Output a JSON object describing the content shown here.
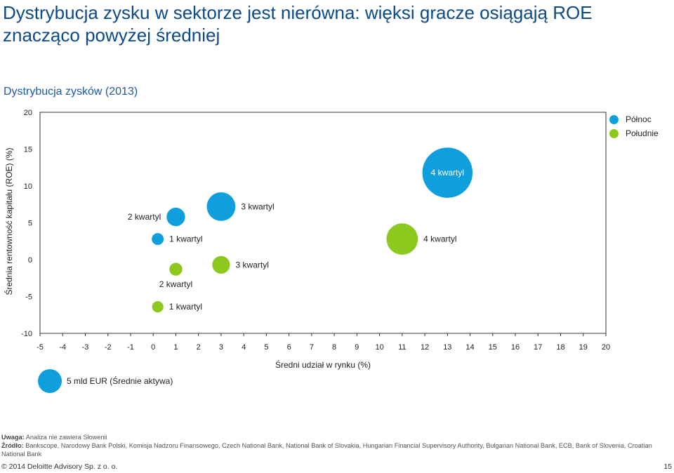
{
  "page": {
    "title": "Dystrybucja zysku w sektorze jest nierówna: więksi gracze osiągają ROE znacząco powyżej średniej",
    "subtitle": "Dystrybucja zysków (2013)",
    "note_label": "Uwaga:",
    "note_text": " Analiza nie zawiera Słowenii",
    "source_label": "Źródło:",
    "source_text": " Bankscope, Narodowy Bank Polski, Komisja Nadzoru Finansowego, Czech National Bank, National Bank of Slovakia, Hungarian Financial Supervisory Authority, Bulgarian National Bank, ECB, Bank of Slovenia, Croatian National Bank",
    "footer": "© 2014 Deloitte Advisory Sp. z o. o.",
    "page_number": "15"
  },
  "chart_data": {
    "type": "scatter",
    "xlabel": "Średni udział w rynku (%)",
    "ylabel": "Średnia rentowność kapitału  (ROE) (%)",
    "xlim": [
      -5,
      20
    ],
    "ylim": [
      -10,
      20
    ],
    "xticks": [
      -5,
      -4,
      -3,
      -2,
      -1,
      0,
      1,
      2,
      3,
      4,
      5,
      6,
      7,
      8,
      9,
      10,
      11,
      12,
      13,
      14,
      15,
      16,
      17,
      18,
      19,
      20
    ],
    "yticks": [
      20,
      15,
      10,
      5,
      0,
      -5,
      -10
    ],
    "legend_position": "top-right",
    "size_legend": {
      "label": "5 mld EUR (Średnie aktywa)",
      "size": 5,
      "color": "#0f9fdc"
    },
    "series": [
      {
        "name": "Północ",
        "color": "#0f9fdc",
        "points": [
          {
            "x": 0.2,
            "y": 2.8,
            "size": 0.6,
            "label": "1 kwartyl",
            "label_side": "right"
          },
          {
            "x": 1.0,
            "y": 5.8,
            "size": 2.5,
            "label": "2 kwartyl",
            "label_side": "left"
          },
          {
            "x": 3.0,
            "y": 7.2,
            "size": 8.0,
            "label": "3 kwartyl",
            "label_side": "right"
          },
          {
            "x": 13.0,
            "y": 11.8,
            "size": 30.0,
            "label": "4 kwartyl",
            "label_side": "center"
          }
        ]
      },
      {
        "name": "Południe",
        "color": "#8cc81e",
        "points": [
          {
            "x": 0.2,
            "y": -6.4,
            "size": 0.5,
            "label": "1 kwartyl",
            "label_side": "right"
          },
          {
            "x": 1.0,
            "y": -1.3,
            "size": 0.8,
            "label": "2 kwartyl",
            "label_side": "below"
          },
          {
            "x": 3.0,
            "y": -0.7,
            "size": 2.2,
            "label": "3 kwartyl",
            "label_side": "right"
          },
          {
            "x": 11.0,
            "y": 2.8,
            "size": 10.0,
            "label": "4 kwartyl",
            "label_side": "right"
          }
        ]
      }
    ]
  }
}
